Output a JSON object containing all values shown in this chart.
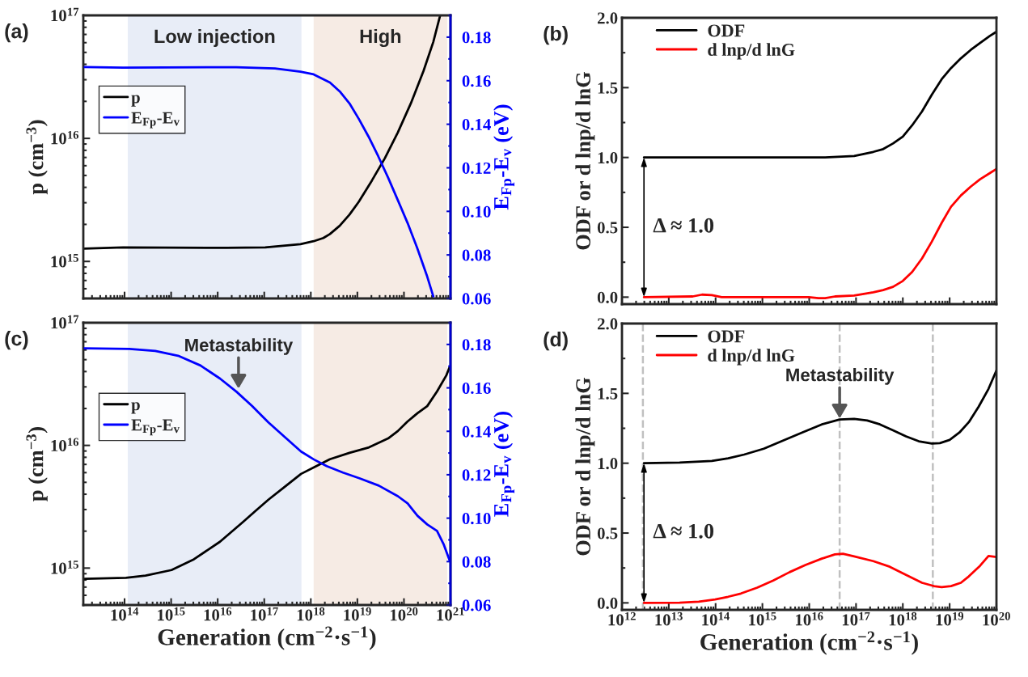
{
  "chart_data": [
    {
      "type": "line",
      "ylabel": "p (cm$^{−3}$)",
      "y2label": "E$_{Fp}$-E$_{v}$ (eV)",
      "log": "xy",
      "legend": "top left",
      "tick_labels": "y",
      "annotations": [
        "(a)"
      ],
      "xlim": [
        13000000000000.0,
        1e+21
      ],
      "xticks": [
        {
          "value": 100000000000000.0,
          "label": null
        },
        {
          "value": 1000000000000000.0,
          "label": null
        },
        {
          "value": 1e+16,
          "label": null
        },
        {
          "value": 1e+17,
          "label": null
        },
        {
          "value": 1e+18,
          "label": null
        },
        {
          "value": 1e+19,
          "label": null
        },
        {
          "value": 1e+20,
          "label": null
        },
        {
          "value": 1e+21,
          "label": null
        }
      ],
      "ylim": [
        500000000000000.0,
        1e+17
      ],
      "yticks": [
        {
          "value": 1000000000000000.0,
          "label": "10$^{15}$"
        },
        {
          "value": 1e+16,
          "label": "10$^{16}$"
        },
        {
          "value": 1e+17,
          "label": "10$^{17}$"
        }
      ],
      "y2lim": [
        0.06,
        0.19
      ],
      "y2ticks": [
        0.06,
        0.08,
        {
          "value": 0.1,
          "label": "0.10"
        },
        0.12,
        0.14,
        0.16,
        0.18
      ],
      "bands": [
        {
          "axis": "x",
          "from": 117000000000000.0,
          "to": 6.3e+17,
          "label": "Low injection",
          "color": "#e8edf7"
        },
        {
          "axis": "x",
          "from": 1.15e+18,
          "to": 8.5e+20,
          "label": "High",
          "color": "#f6ebe4"
        }
      ],
      "series": [
        {
          "name": "p",
          "color": "#000000",
          "x": [
            13500000000000.0,
            93000000000000.0,
            1.55e+16,
            1.05e+17,
            6e+17,
            1.15e+18,
            1.86e+18,
            2.57e+18,
            4.17e+18,
            6.76e+18,
            1.07e+19,
            2.04e+19,
            3.89e+19,
            7.41e+19,
            1.41e+20,
            2.63e+20,
            4.27e+20,
            6e+20
          ],
          "values": [
            1270000000000000.0,
            1300000000000000.0,
            1290000000000000.0,
            1300000000000000.0,
            1380000000000000.0,
            1460000000000000.0,
            1550000000000000.0,
            1670000000000000.0,
            1950000000000000.0,
            2400000000000000.0,
            3050000000000000.0,
            4530000000000000.0,
            6900000000000000.0,
            1.12e+16,
            1.93e+16,
            3.53e+16,
            6.08e+16,
            1e+17
          ]
        },
        {
          "name": "E$_{Fp}$-E$_{v}$",
          "color": "#0000ff",
          "axis": "y2",
          "x": [
            13500000000000.0,
            93000000000000.0,
            2.51e+16,
            1.7e+17,
            6e+17,
            1.15e+18,
            2.57e+18,
            4.17e+18,
            6.76e+18,
            1.07e+19,
            1.74e+19,
            2.82e+19,
            4.57e+19,
            7.41e+19,
            1.2e+20,
            1.91e+20,
            3.09e+20,
            4.27e+20
          ],
          "values": [
            0.1663,
            0.166,
            0.1662,
            0.1656,
            0.1641,
            0.1629,
            0.1592,
            0.1551,
            0.1496,
            0.1425,
            0.1343,
            0.1252,
            0.1155,
            0.1051,
            0.0946,
            0.0834,
            0.0707,
            0.061
          ]
        }
      ]
    },
    {
      "type": "line",
      "ylabel": "ODF or d lnp/d lnG",
      "log": "x",
      "legend": "top left",
      "tick_labels": "y",
      "annotations": [
        "(b)",
        "Δ ≈ 1.0"
      ],
      "xlim": [
        1000000000000.0,
        1e+20
      ],
      "xticks": [
        {
          "value": 1000000000000.0,
          "label": null
        },
        {
          "value": 10000000000000.0,
          "label": null
        },
        {
          "value": 100000000000000.0,
          "label": null
        },
        {
          "value": 1000000000000000.0,
          "label": null
        },
        {
          "value": 1e+16,
          "label": null
        },
        {
          "value": 1e+17,
          "label": null
        },
        {
          "value": 1e+18,
          "label": null
        },
        {
          "value": 1e+19,
          "label": null
        },
        {
          "value": 1e+20,
          "label": null
        }
      ],
      "ylim": [
        -0.05,
        2.0
      ],
      "yticks": [
        {
          "value": 0,
          "label": "0.0"
        },
        {
          "value": 0.5,
          "label": "0.5"
        },
        {
          "value": 1,
          "label": "1.0"
        },
        {
          "value": 1.5,
          "label": "1.5"
        },
        {
          "value": 2,
          "label": "2.0"
        }
      ],
      "series": [
        {
          "name": "ODF",
          "color": "#000000",
          "x": [
            2950000000000.0,
            407000000000000.0,
            2.19e+16,
            9.12e+16,
            2.34e+17,
            3.8e+17,
            6.17e+17,
            1e+18,
            1.58e+18,
            2.57e+18,
            4.17e+18,
            6.76e+18,
            1.07e+19,
            1.74e+19,
            2.82e+19,
            4.47e+19,
            7.24e+19,
            1e+20
          ],
          "values": [
            1.0,
            1.0,
            1.0,
            1.01,
            1.04,
            1.06,
            1.1,
            1.15,
            1.23,
            1.33,
            1.45,
            1.56,
            1.64,
            1.71,
            1.77,
            1.82,
            1.87,
            1.9
          ]
        },
        {
          "name": "d lnp/d lnG",
          "color": "#ff0000",
          "x": [
            2950000000000.0,
            32400000000000.0,
            51300000000000.0,
            83200000000000.0,
            135000000000000.0,
            9770000000000000.0,
            1.58e+16,
            2.19e+16,
            3.55e+16,
            9.12e+16,
            2.34e+17,
            3.8e+17,
            6.17e+17,
            1e+18,
            1.58e+18,
            2.57e+18,
            4.17e+18,
            6.76e+18,
            1.07e+19,
            1.74e+19,
            2.82e+19,
            4.47e+19,
            7.24e+19,
            1e+20
          ],
          "values": [
            0.0,
            0.005,
            0.018,
            0.014,
            0.0,
            0.0,
            -0.007,
            -0.007,
            0.005,
            0.012,
            0.035,
            0.051,
            0.074,
            0.116,
            0.18,
            0.277,
            0.398,
            0.532,
            0.647,
            0.728,
            0.791,
            0.844,
            0.888,
            0.918
          ]
        }
      ]
    },
    {
      "type": "line",
      "xlabel": "Generation (cm$^{−2}$·s$^{−1}$)",
      "ylabel": "p (cm$^{−3}$)",
      "y2label": "E$_{Fp}$-E$_{v}$ (eV)",
      "log": "xy",
      "legend": "top left",
      "annotations": [
        "(c)",
        {
          "text": "Metastability",
          "x": 2.8e+16,
          "y": 2.9e+16
        }
      ],
      "xlim": [
        13000000000000.0,
        1e+21
      ],
      "xticks": [
        {
          "value": 100000000000000.0,
          "label": "10$^{14}$"
        },
        {
          "value": 1000000000000000.0,
          "label": "10$^{15}$"
        },
        {
          "value": 1e+16,
          "label": "10$^{16}$"
        },
        {
          "value": 1e+17,
          "label": "10$^{17}$"
        },
        {
          "value": 1e+18,
          "label": "10$^{18}$"
        },
        {
          "value": 1e+19,
          "label": "10$^{19}$"
        },
        {
          "value": 1e+20,
          "label": "10$^{20}$"
        },
        {
          "value": 1e+21,
          "label": "10$^{21}$"
        }
      ],
      "ylim": [
        500000000000000.0,
        1e+17
      ],
      "yticks": [
        {
          "value": 1000000000000000.0,
          "label": "10$^{15}$"
        },
        {
          "value": 1e+16,
          "label": "10$^{16}$"
        },
        {
          "value": 1e+17,
          "label": "10$^{17}$"
        }
      ],
      "y2lim": [
        0.06,
        0.19
      ],
      "y2ticks": [
        0.06,
        0.08,
        {
          "value": 0.1,
          "label": "0.10"
        },
        0.12,
        0.14,
        0.16,
        0.18
      ],
      "bands": [
        {
          "axis": "x",
          "from": 117000000000000.0,
          "to": 6.3e+17,
          "color": "#e8edf7"
        },
        {
          "axis": "x",
          "from": 1.15e+18,
          "to": 8.5e+20,
          "color": "#f6ebe4"
        }
      ],
      "series": [
        {
          "name": "p",
          "color": "#000000",
          "x": [
            13500000000000.0,
            107000000000000.0,
            282000000000000.0,
            1020000000000000.0,
            3090000000000000.0,
            1.12e+16,
            3.47e+16,
            6.46e+16,
            1.23e+17,
            2.75e+17,
            6.17e+17,
            1.17e+18,
            2.57e+18,
            6.76e+18,
            1.78e+19,
            4.57e+19,
            7.41e+19,
            1.2e+20,
            1.95e+20,
            3.16e+20,
            5.13e+20,
            8.13e+20,
            9.55e+20
          ],
          "values": [
            818000000000000.0,
            834000000000000.0,
            869000000000000.0,
            964000000000000.0,
            1180000000000000.0,
            1640000000000000.0,
            2370000000000000.0,
            2920000000000000.0,
            3610000000000000.0,
            4600000000000000.0,
            5860000000000000.0,
            6620000000000000.0,
            7710000000000000.0,
            8690000000000000.0,
            9640000000000000.0,
            1.14e+16,
            1.31e+16,
            1.57e+16,
            1.83e+16,
            2.09e+16,
            2.75e+16,
            3.72e+16,
            4.34e+16
          ]
        },
        {
          "name": "E$_{Fp}$-E$_{v}$",
          "color": "#0000ff",
          "axis": "y2",
          "x": [
            13500000000000.0,
            127000000000000.0,
            457000000000000.0,
            1410000000000000.0,
            4270000000000000.0,
            1.12e+16,
            2.51e+16,
            5.5e+16,
            1.23e+17,
            2.75e+17,
            6.17e+17,
            1.17e+18,
            2.19e+18,
            4.9e+18,
            1.1e+19,
            2.88e+19,
            7.41e+19,
            1.2e+20,
            1.95e+20,
            3.16e+20,
            5.13e+20,
            7.08e+20,
            9.55e+20
          ],
          "values": [
            0.1782,
            0.1779,
            0.177,
            0.1748,
            0.1703,
            0.1643,
            0.1583,
            0.1516,
            0.1441,
            0.1374,
            0.1307,
            0.127,
            0.124,
            0.121,
            0.1184,
            0.115,
            0.1101,
            0.1068,
            0.1011,
            0.0971,
            0.0941,
            0.0881,
            0.0806
          ]
        }
      ]
    },
    {
      "type": "line",
      "xlabel": "Generation (cm$^{−2}$·s$^{−1}$)",
      "ylabel": "ODF or d lnp/d lnG",
      "log": "x",
      "legend": "top left",
      "annotations": [
        "(d)",
        "Δ ≈ 1.0",
        {
          "text": "Metastability",
          "x": 4.47e+16,
          "y": 1.32
        }
      ],
      "xlim": [
        1000000000000.0,
        1e+20
      ],
      "xticks": [
        {
          "value": 1000000000000.0,
          "label": "10$^{12}$"
        },
        {
          "value": 10000000000000.0,
          "label": "10$^{13}$"
        },
        {
          "value": 100000000000000.0,
          "label": "10$^{14}$"
        },
        {
          "value": 1000000000000000.0,
          "label": "10$^{15}$"
        },
        {
          "value": 1e+16,
          "label": "10$^{16}$"
        },
        {
          "value": 1e+17,
          "label": "10$^{17}$"
        },
        {
          "value": 1e+18,
          "label": "10$^{18}$"
        },
        {
          "value": 1e+19,
          "label": "10$^{19}$"
        },
        {
          "value": 1e+20,
          "label": "10$^{20}$"
        }
      ],
      "ylim": [
        -0.05,
        2.0
      ],
      "yticks": [
        {
          "value": 0,
          "label": "0.0"
        },
        0.5,
        {
          "value": 1,
          "label": "1.0"
        },
        1.5,
        {
          "value": 2,
          "label": "2.0"
        }
      ],
      "ref_lines": [
        {
          "axis": "x",
          "value": 2800000000000.0,
          "color": "#c0c0c0",
          "line_style": "dashed"
        },
        {
          "axis": "x",
          "value": 4.47e+16,
          "color": "#c0c0c0",
          "line_style": "dashed"
        },
        {
          "axis": "x",
          "value": 4.37e+18,
          "color": "#c0c0c0",
          "line_style": "dashed"
        }
      ],
      "series": [
        {
          "name": "ODF",
          "color": "#000000",
          "x": [
            2950000000000.0,
            17000000000000.0,
            83200000000000.0,
            186000000000000.0,
            407000000000000.0,
            1070000000000000.0,
            2750000000000000.0,
            7080000000000000.0,
            1.86e+16,
            4.47e+16,
            9.12e+16,
            1.74e+17,
            3.24e+17,
            6.17e+17,
            1.17e+18,
            2.19e+18,
            4.17e+18,
            6.17e+18,
            1e+19,
            1.62e+19,
            2.57e+19,
            4.17e+19,
            6.76e+19,
            1e+20
          ],
          "values": [
            1.0,
            1.005,
            1.016,
            1.035,
            1.062,
            1.104,
            1.162,
            1.22,
            1.278,
            1.313,
            1.317,
            1.306,
            1.278,
            1.236,
            1.192,
            1.157,
            1.141,
            1.144,
            1.167,
            1.22,
            1.294,
            1.405,
            1.532,
            1.664
          ]
        },
        {
          "name": "d lnp/d lnG",
          "color": "#ff0000",
          "x": [
            2950000000000.0,
            17000000000000.0,
            43700000000000.0,
            97700000000000.0,
            186000000000000.0,
            347000000000000.0,
            776000000000000.0,
            1700000000000000.0,
            3800000000000000.0,
            8320000000000000.0,
            1.86e+16,
            3.55e+16,
            5.25e+16,
            9.12e+16,
            2.34e+17,
            5.25e+17,
            1.17e+18,
            2.57e+18,
            4.9e+18,
            6.76e+18,
            1.07e+19,
            1.74e+19,
            2.57e+19,
            4.47e+19,
            6.76e+19,
            1e+20
          ],
          "values": [
            0.0,
            0.002,
            0.009,
            0.025,
            0.044,
            0.067,
            0.109,
            0.16,
            0.22,
            0.271,
            0.317,
            0.347,
            0.352,
            0.333,
            0.299,
            0.259,
            0.201,
            0.144,
            0.118,
            0.113,
            0.12,
            0.144,
            0.19,
            0.266,
            0.336,
            0.329
          ]
        }
      ]
    }
  ]
}
